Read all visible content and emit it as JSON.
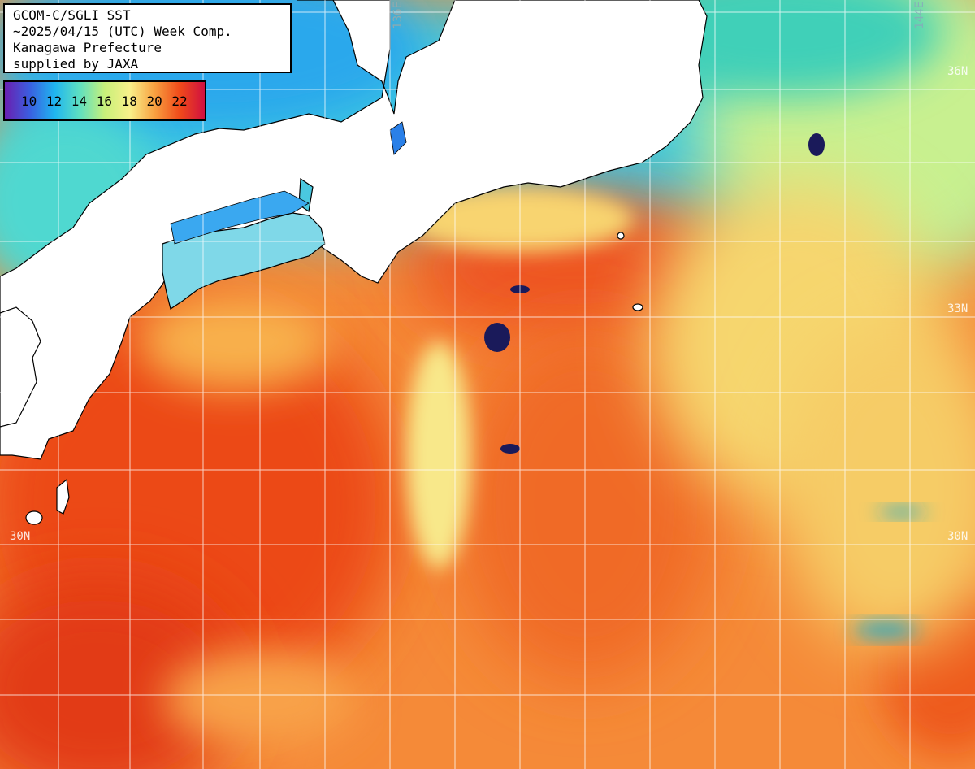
{
  "info": {
    "line1": "GCOM-C/SGLI SST",
    "line2": "~2025/04/15 (UTC) Week Comp.",
    "line3": "Kanagawa Prefecture",
    "line4": "supplied by JAXA"
  },
  "legend": {
    "ticks": "10 12 14 16 18 20 22",
    "gradient_colors": [
      "#6a1fb0",
      "#3a5fe0",
      "#1fb6f0",
      "#5fe0c0",
      "#c8f07a",
      "#f8f08a",
      "#f8a040",
      "#f04a1a",
      "#d01040"
    ]
  },
  "grid_labels": {
    "lon_136": "136E",
    "lon_144": "144E",
    "lat_36_right": "36N",
    "lat_33_right": "33N",
    "lat_30_left": "30N",
    "lat_30_right": "30N"
  },
  "colors": {
    "land": "#ffffff",
    "coast": "#000000",
    "warm": "#f0501c",
    "mid": "#f89a3c",
    "cool": "#f6e07a",
    "cold": "#1fb6f0",
    "grid": "#ffffff"
  }
}
